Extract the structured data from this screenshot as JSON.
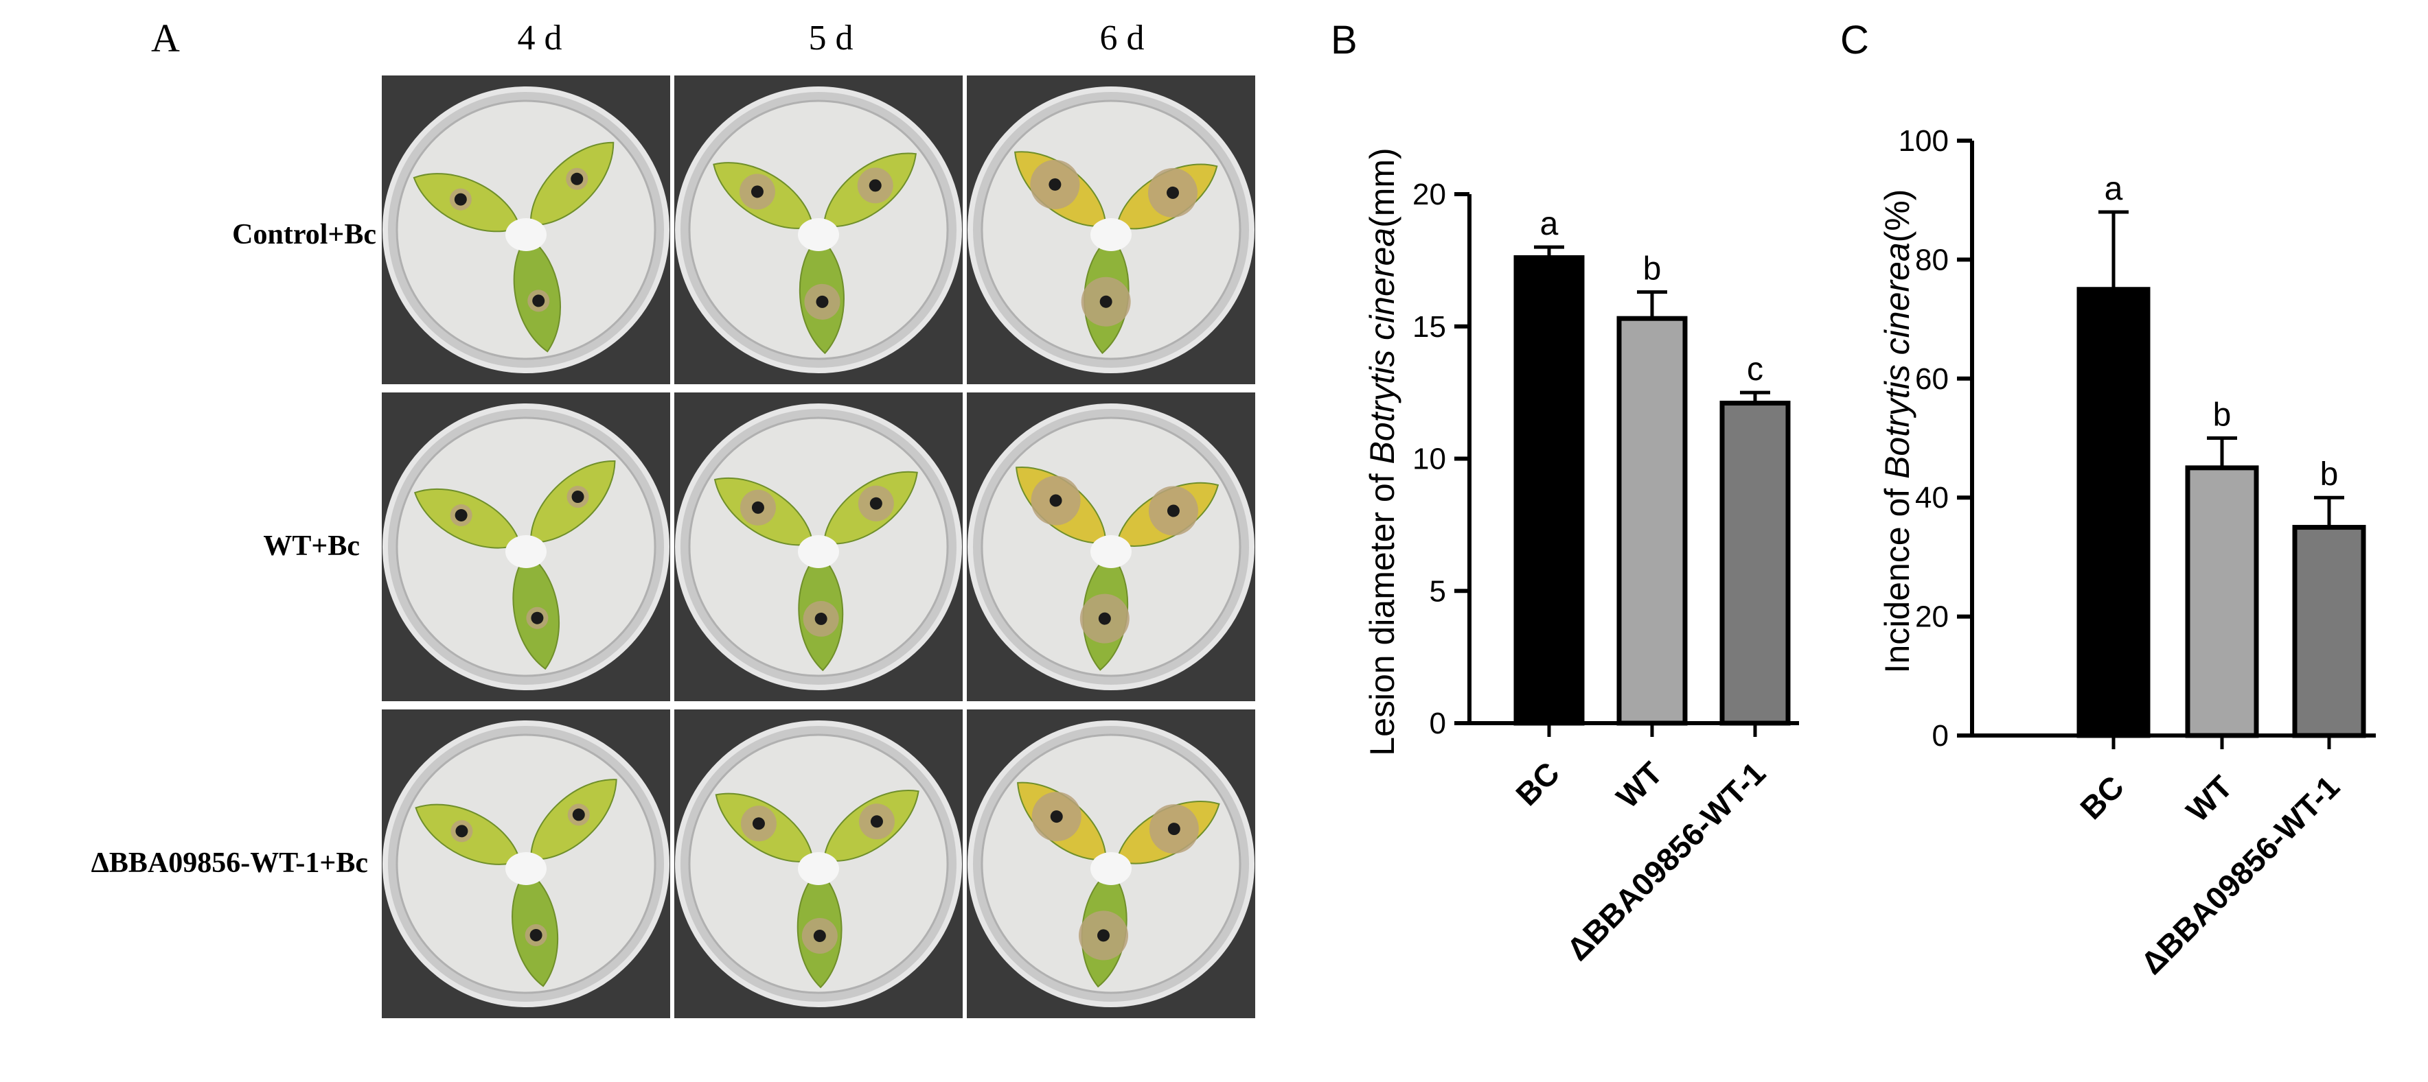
{
  "panelA": {
    "letter": "A",
    "columns": [
      "4 d",
      "5 d",
      "6 d"
    ],
    "rows": [
      "Control+Bc",
      "WT+Bc",
      "ΔBBA09856-WT-1+Bc"
    ]
  },
  "chart_data": [
    {
      "panel": "B",
      "type": "bar",
      "title": "",
      "ylabel_prefix": "Lesion diameter of ",
      "ylabel_italic": "Botrytis cinerea",
      "ylabel_suffix": "(mm)",
      "xlabel": "",
      "categories": [
        "BC",
        "WT",
        "ΔBBA09856-WT-1"
      ],
      "values": [
        17.6,
        15.3,
        12.1
      ],
      "errors": [
        0.4,
        1.0,
        0.4
      ],
      "letters": [
        "a",
        "b",
        "c"
      ],
      "colors": [
        "#000000",
        "#a6a6a6",
        "#7a7a7a"
      ],
      "ylim": [
        0,
        20
      ],
      "yticks": [
        0,
        5,
        10,
        15,
        20
      ]
    },
    {
      "panel": "C",
      "type": "bar",
      "title": "",
      "ylabel_prefix": "Incidence of ",
      "ylabel_italic": "Botrytis cinerea",
      "ylabel_suffix": "(%)",
      "xlabel": "",
      "categories": [
        "BC",
        "WT",
        "ΔBBA09856-WT-1"
      ],
      "values": [
        75,
        45,
        35
      ],
      "errors": [
        13,
        5,
        5
      ],
      "letters": [
        "a",
        "b",
        "b"
      ],
      "colors": [
        "#000000",
        "#a6a6a6",
        "#7a7a7a"
      ],
      "ylim": [
        0,
        100
      ],
      "yticks": [
        0,
        20,
        40,
        60,
        80,
        100
      ]
    }
  ]
}
